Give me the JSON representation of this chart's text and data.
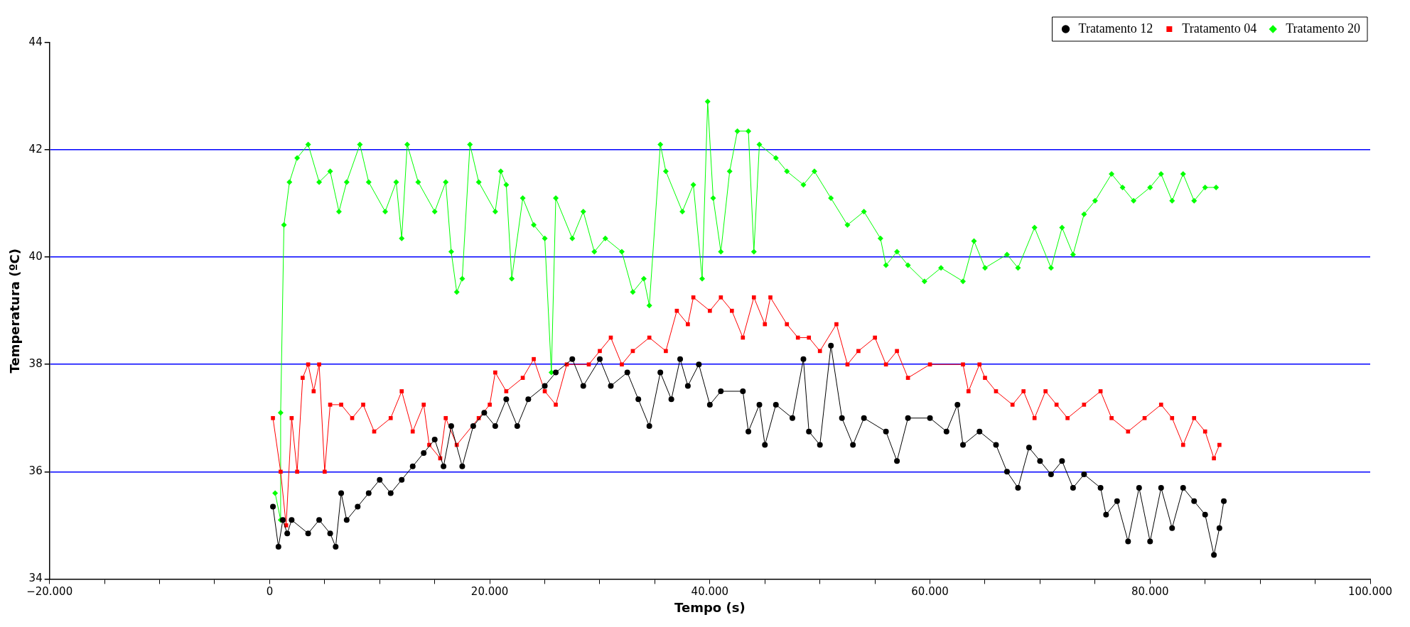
{
  "chart_data": {
    "type": "line",
    "xlabel": "Tempo (s)",
    "ylabel": "Temperatura (ºC)",
    "xlim": [
      -20000,
      100000
    ],
    "ylim": [
      34,
      44
    ],
    "xticks": [
      {
        "value": -20000,
        "label": "−20.000"
      },
      {
        "value": -15000,
        "label": null
      },
      {
        "value": -10000,
        "label": null
      },
      {
        "value": -5000,
        "label": null
      },
      0,
      {
        "value": 5000,
        "label": null
      },
      {
        "value": 10000,
        "label": null
      },
      {
        "value": 15000,
        "label": null
      },
      {
        "value": 20000,
        "label": "20.000"
      },
      {
        "value": 25000,
        "label": null
      },
      {
        "value": 30000,
        "label": null
      },
      {
        "value": 35000,
        "label": null
      },
      {
        "value": 40000,
        "label": "40.000"
      },
      {
        "value": 45000,
        "label": null
      },
      {
        "value": 50000,
        "label": null
      },
      {
        "value": 55000,
        "label": null
      },
      {
        "value": 60000,
        "label": "60.000"
      },
      {
        "value": 65000,
        "label": null
      },
      {
        "value": 70000,
        "label": null
      },
      {
        "value": 75000,
        "label": null
      },
      {
        "value": 80000,
        "label": "80.000"
      },
      {
        "value": 85000,
        "label": null
      },
      {
        "value": 90000,
        "label": null
      },
      {
        "value": 95000,
        "label": null
      },
      {
        "value": 100000,
        "label": "100.000"
      }
    ],
    "yticks": [
      34,
      36,
      38,
      40,
      42,
      44
    ],
    "grid": "y",
    "legend": "top right",
    "line_style": "solid",
    "series": [
      {
        "name": "Tratamento 12",
        "color": "#000000",
        "marker": "circle",
        "x": [
          300,
          800,
          1200,
          1600,
          2000,
          3500,
          4500,
          5500,
          6000,
          6500,
          7000,
          8000,
          9000,
          10000,
          11000,
          12000,
          13000,
          14000,
          15000,
          15800,
          16500,
          17500,
          18500,
          19500,
          20500,
          21500,
          22500,
          23500,
          25000,
          26000,
          27500,
          28500,
          30000,
          31000,
          32500,
          33500,
          34500,
          35500,
          36500,
          37300,
          38000,
          39000,
          40000,
          41000,
          43000,
          43500,
          44500,
          45000,
          46000,
          47500,
          48500,
          49000,
          50000,
          51000,
          52000,
          53000,
          54000,
          56000,
          57000,
          58000,
          60000,
          61500,
          62500,
          63000,
          64500,
          66000,
          67000,
          68000,
          69000,
          70000,
          71000,
          72000,
          73000,
          74000,
          75500,
          76000,
          77000,
          78000,
          79000,
          80000,
          81000,
          82000,
          83000,
          84000,
          85000,
          85800,
          86300,
          86700
        ],
        "values": [
          35.35,
          34.6,
          35.1,
          34.85,
          35.1,
          34.85,
          35.1,
          34.85,
          34.6,
          35.6,
          35.1,
          35.35,
          35.6,
          35.85,
          35.6,
          35.85,
          36.1,
          36.35,
          36.6,
          36.1,
          36.85,
          36.1,
          36.85,
          37.1,
          36.85,
          37.35,
          36.85,
          37.35,
          37.6,
          37.85,
          38.1,
          37.6,
          38.1,
          37.6,
          37.85,
          37.35,
          36.85,
          37.85,
          37.35,
          38.1,
          37.6,
          38,
          37.25,
          37.5,
          37.5,
          36.75,
          37.25,
          36.5,
          37.25,
          37,
          38.1,
          36.75,
          36.5,
          38.35,
          37,
          36.5,
          37,
          36.75,
          36.2,
          37,
          37,
          36.75,
          37.25,
          36.5,
          36.75,
          36.5,
          36,
          35.7,
          36.45,
          36.2,
          35.95,
          36.2,
          35.7,
          35.95,
          35.7,
          35.2,
          35.45,
          34.7,
          35.7,
          34.7,
          35.7,
          34.95,
          35.7,
          35.45,
          35.2,
          34.45,
          34.95,
          35.45
        ]
      },
      {
        "name": "Tratamento 04",
        "color": "#ff0000",
        "marker": "square",
        "x": [
          300,
          1000,
          1500,
          2000,
          2500,
          3000,
          3500,
          4000,
          4500,
          5000,
          5500,
          6500,
          7500,
          8500,
          9500,
          11000,
          12000,
          13000,
          14000,
          14500,
          15500,
          16000,
          17000,
          19000,
          20000,
          20500,
          21500,
          23000,
          24000,
          25000,
          26000,
          27000,
          29000,
          30000,
          31000,
          32000,
          33000,
          34500,
          36000,
          37000,
          38000,
          38500,
          40000,
          41000,
          42000,
          43000,
          44000,
          45000,
          45500,
          47000,
          48000,
          49000,
          50000,
          51500,
          52500,
          53500,
          55000,
          56000,
          57000,
          58000,
          60000,
          63000,
          63500,
          64500,
          65000,
          66000,
          67500,
          68500,
          69500,
          70500,
          71500,
          72500,
          74000,
          75500,
          76500,
          78000,
          79500,
          81000,
          82000,
          83000,
          84000,
          85000,
          85800,
          86300
        ],
        "values": [
          37,
          36,
          35,
          37,
          36,
          37.75,
          38,
          37.5,
          38,
          36,
          37.25,
          37.25,
          37,
          37.25,
          36.75,
          37,
          37.5,
          36.75,
          37.25,
          36.5,
          36.25,
          37,
          36.5,
          37,
          37.25,
          37.85,
          37.5,
          37.75,
          38.1,
          37.5,
          37.25,
          38,
          38,
          38.25,
          38.5,
          38,
          38.25,
          38.5,
          38.25,
          39,
          38.75,
          39.25,
          39,
          39.25,
          39,
          38.5,
          39.25,
          38.75,
          39.25,
          38.75,
          38.5,
          38.5,
          38.25,
          38.75,
          38,
          38.25,
          38.5,
          38,
          38.25,
          37.75,
          38,
          38,
          37.5,
          38,
          37.75,
          37.5,
          37.25,
          37.5,
          37,
          37.5,
          37.25,
          37,
          37.25,
          37.5,
          37,
          36.75,
          37,
          37.25,
          37,
          36.5,
          37,
          36.75,
          36.25,
          36.5
        ]
      },
      {
        "name": "Tratamento 20",
        "color": "#00ff00",
        "marker": "diamond",
        "x": [
          500,
          1000,
          1000,
          1300,
          1800,
          2500,
          3500,
          4500,
          5500,
          6300,
          7000,
          8200,
          9000,
          10500,
          11500,
          12000,
          12500,
          13500,
          15000,
          16000,
          16500,
          17000,
          17500,
          18200,
          19000,
          20500,
          21000,
          21500,
          22000,
          23000,
          24000,
          25000,
          25600,
          26000,
          27500,
          28500,
          29500,
          30500,
          32000,
          33000,
          34000,
          34500,
          35500,
          36000,
          37500,
          38500,
          39300,
          39800,
          40300,
          41000,
          41800,
          42500,
          43500,
          44000,
          44500,
          46000,
          47000,
          48500,
          49500,
          51000,
          52500,
          54000,
          55500,
          56000,
          57000,
          58000,
          59500,
          61000,
          63000,
          64000,
          65000,
          67000,
          68000,
          69500,
          71000,
          72000,
          73000,
          74000,
          75000,
          76500,
          77500,
          78500,
          80000,
          81000,
          82000,
          83000,
          84000,
          85000,
          86000
        ],
        "values": [
          35.6,
          35.1,
          37.1,
          40.6,
          41.4,
          41.85,
          42.1,
          41.4,
          41.6,
          40.85,
          41.4,
          42.1,
          41.4,
          40.85,
          41.4,
          40.35,
          42.1,
          41.4,
          40.85,
          41.4,
          40.1,
          39.35,
          39.6,
          42.1,
          41.4,
          40.85,
          41.6,
          41.35,
          39.6,
          41.1,
          40.6,
          40.35,
          37.85,
          41.1,
          40.35,
          40.85,
          40.1,
          40.35,
          40.1,
          39.35,
          39.6,
          39.1,
          42.1,
          41.6,
          40.85,
          41.35,
          39.6,
          42.9,
          41.1,
          40.1,
          41.6,
          42.35,
          42.35,
          40.1,
          42.1,
          41.85,
          41.6,
          41.35,
          41.6,
          41.1,
          40.6,
          40.85,
          40.35,
          39.85,
          40.1,
          39.85,
          39.55,
          39.8,
          39.55,
          40.3,
          39.8,
          40.05,
          39.8,
          40.55,
          39.8,
          40.55,
          40.05,
          40.8,
          41.05,
          41.55,
          41.3,
          41.05,
          41.3,
          41.55,
          41.05,
          41.55,
          41.05,
          41.3,
          41.3
        ]
      }
    ]
  }
}
